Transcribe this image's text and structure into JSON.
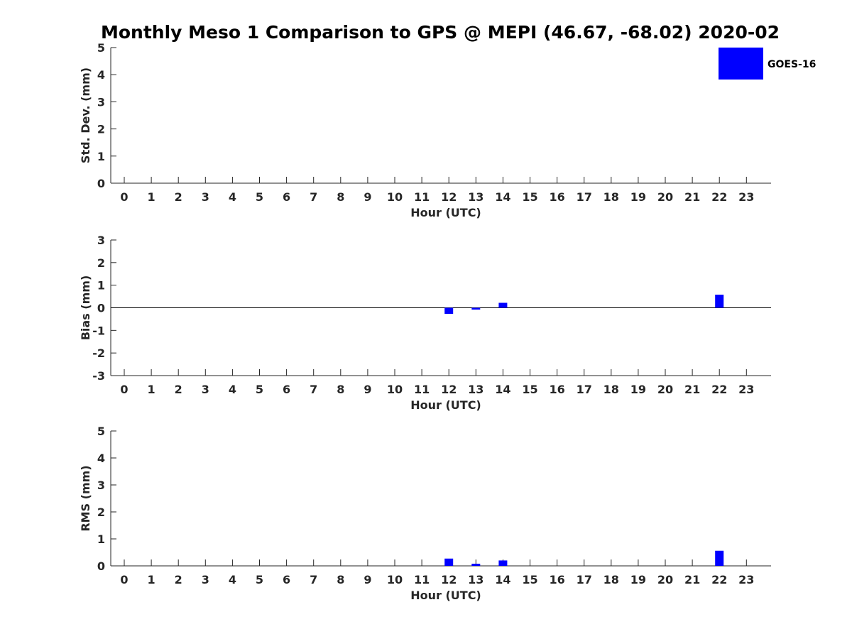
{
  "figure": {
    "title": "Monthly Meso 1 Comparison to GPS @ MEPI (46.67, -68.02) 2020-02",
    "legend": {
      "label": "GOES-16",
      "color": "#0000ff"
    }
  },
  "chart_data": [
    {
      "type": "bar",
      "title": "Monthly Meso 1 Comparison to GPS @ MEPI (46.67, -68.02) 2020-02",
      "xlabel": "Hour (UTC)",
      "ylabel": "Std. Dev. (mm)",
      "categories": [
        "0",
        "1",
        "2",
        "3",
        "4",
        "5",
        "6",
        "7",
        "8",
        "9",
        "10",
        "11",
        "12",
        "13",
        "14",
        "15",
        "16",
        "17",
        "18",
        "19",
        "20",
        "21",
        "22",
        "23"
      ],
      "x": [
        0,
        1,
        2,
        3,
        4,
        5,
        6,
        7,
        8,
        9,
        10,
        11,
        12,
        13,
        14,
        15,
        16,
        17,
        18,
        19,
        20,
        21,
        22,
        23
      ],
      "yticks": [
        0,
        1,
        2,
        3,
        4,
        5
      ],
      "ylim": [
        0,
        5
      ],
      "xlim": [
        -0.5,
        23.9
      ],
      "zero_line": false,
      "series": [
        {
          "name": "GOES-16",
          "color": "#0000ff",
          "x": [],
          "values": []
        }
      ]
    },
    {
      "type": "bar",
      "xlabel": "Hour (UTC)",
      "ylabel": "Bias (mm)",
      "categories": [
        "0",
        "1",
        "2",
        "3",
        "4",
        "5",
        "6",
        "7",
        "8",
        "9",
        "10",
        "11",
        "12",
        "13",
        "14",
        "15",
        "16",
        "17",
        "18",
        "19",
        "20",
        "21",
        "22",
        "23"
      ],
      "x": [
        0,
        1,
        2,
        3,
        4,
        5,
        6,
        7,
        8,
        9,
        10,
        11,
        12,
        13,
        14,
        15,
        16,
        17,
        18,
        19,
        20,
        21,
        22,
        23
      ],
      "yticks": [
        -3,
        -2,
        -1,
        0,
        1,
        2,
        3
      ],
      "ylim": [
        -3,
        3
      ],
      "xlim": [
        -0.5,
        23.9
      ],
      "zero_line": true,
      "series": [
        {
          "name": "GOES-16",
          "color": "#0000ff",
          "x": [
            12,
            13,
            14,
            22
          ],
          "values": [
            -0.27,
            -0.08,
            0.22,
            0.58
          ]
        }
      ]
    },
    {
      "type": "bar",
      "xlabel": "Hour (UTC)",
      "ylabel": "RMS (mm)",
      "categories": [
        "0",
        "1",
        "2",
        "3",
        "4",
        "5",
        "6",
        "7",
        "8",
        "9",
        "10",
        "11",
        "12",
        "13",
        "14",
        "15",
        "16",
        "17",
        "18",
        "19",
        "20",
        "21",
        "22",
        "23"
      ],
      "x": [
        0,
        1,
        2,
        3,
        4,
        5,
        6,
        7,
        8,
        9,
        10,
        11,
        12,
        13,
        14,
        15,
        16,
        17,
        18,
        19,
        20,
        21,
        22,
        23
      ],
      "yticks": [
        0,
        1,
        2,
        3,
        4,
        5
      ],
      "ylim": [
        0,
        5
      ],
      "xlim": [
        -0.5,
        23.9
      ],
      "zero_line": false,
      "series": [
        {
          "name": "GOES-16",
          "color": "#0000ff",
          "x": [
            12,
            13,
            14,
            22
          ],
          "values": [
            0.27,
            0.08,
            0.2,
            0.56
          ]
        }
      ]
    }
  ]
}
